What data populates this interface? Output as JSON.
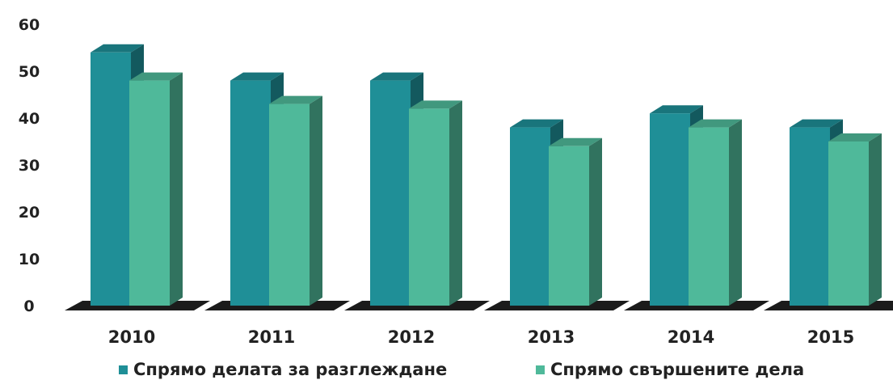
{
  "chart_data": {
    "type": "bar",
    "categories": [
      "2010",
      "2011",
      "2012",
      "2013",
      "2014",
      "2015"
    ],
    "series": [
      {
        "name": "Спрямо делата за разглеждане",
        "values": [
          54,
          48,
          48,
          38,
          41,
          38
        ],
        "color": "#1f8f97"
      },
      {
        "name": "Спрямо свършените дела",
        "values": [
          48,
          43,
          42,
          34,
          38,
          35
        ],
        "color": "#4fb99a"
      }
    ],
    "ylim": [
      0,
      60
    ],
    "yticks": [
      "0",
      "10",
      "20",
      "30",
      "40",
      "50",
      "60"
    ],
    "grid": false,
    "legend": "bottom",
    "style": "3d"
  }
}
